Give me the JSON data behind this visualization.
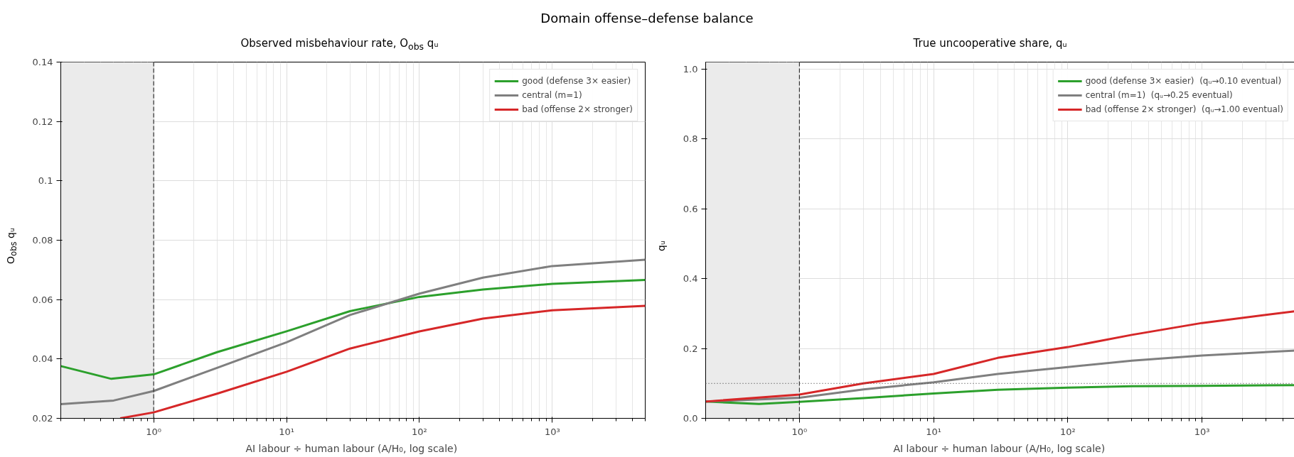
{
  "chart_data": [
    {
      "type": "line",
      "annotations": [
        "Domain offense–defense balance"
      ],
      "title": "Observed misbehaviour rate, O$_{obs}$ qᵤ",
      "xlabel": "AI labour ÷ human labour  (A/H₀, log scale)",
      "ylabel": "O$_{obs}$ qᵤ",
      "log": "x",
      "grid": true,
      "legend": "top right",
      "line_style": "solid",
      "marker": "none",
      "xlim": [
        0.2,
        5000
      ],
      "ylim": [
        0.02,
        0.14
      ],
      "xticks": [
        {
          "value": 1,
          "label": "10⁰"
        },
        {
          "value": 10,
          "label": "10¹"
        },
        {
          "value": 100,
          "label": "10²"
        },
        {
          "value": 1000,
          "label": "10³"
        }
      ],
      "yticks": [
        0.02,
        0.04,
        0.06,
        0.08,
        0.1,
        0.12,
        0.14
      ],
      "bands": [
        {
          "axis": "x",
          "from": 0.2,
          "to": 1,
          "color": "#ebebeb"
        }
      ],
      "ref_lines": [
        {
          "axis": "x",
          "value": 1,
          "color": "#333333",
          "line_style": "dashed"
        }
      ],
      "series": [
        {
          "name": "good (defense 3× easier)",
          "color": "#2ca02c",
          "x": [
            0.2,
            0.48,
            1,
            3,
            10,
            30,
            100,
            300,
            1000,
            5000
          ],
          "values": [
            0.0376,
            0.0333,
            0.0348,
            0.0423,
            0.0493,
            0.0561,
            0.0609,
            0.0634,
            0.0653,
            0.0666
          ]
        },
        {
          "name": "central (m=1)",
          "color": "#7f7f7f",
          "x": [
            0.2,
            0.5,
            1,
            3,
            10,
            30,
            100,
            300,
            1000,
            5000
          ],
          "values": [
            0.0248,
            0.026,
            0.0292,
            0.037,
            0.0456,
            0.0548,
            0.062,
            0.0674,
            0.0713,
            0.0734
          ]
        },
        {
          "name": "bad (offense 2× stronger)",
          "color": "#d62728",
          "x": [
            0.56,
            1,
            3,
            10,
            30,
            100,
            300,
            1000,
            5000
          ],
          "values": [
            0.02,
            0.022,
            0.0283,
            0.0357,
            0.0435,
            0.0493,
            0.0536,
            0.0564,
            0.0579
          ]
        }
      ]
    },
    {
      "type": "line",
      "title": "True uncooperative share, qᵤ",
      "xlabel": "AI labour ÷ human labour  (A/H₀, log scale)",
      "ylabel": "qᵤ",
      "log": "x",
      "grid": true,
      "legend": "top right",
      "line_style": "solid",
      "marker": "none",
      "xlim": [
        0.2,
        5000
      ],
      "ylim": [
        0,
        1.02
      ],
      "xticks": [
        {
          "value": 1,
          "label": "10⁰"
        },
        {
          "value": 10,
          "label": "10¹"
        },
        {
          "value": 100,
          "label": "10²"
        },
        {
          "value": 1000,
          "label": "10³"
        }
      ],
      "yticks": [
        {
          "value": 0,
          "label": "0.0"
        },
        {
          "value": 0.2,
          "label": "0.2"
        },
        {
          "value": 0.4,
          "label": "0.4"
        },
        {
          "value": 0.6,
          "label": "0.6"
        },
        {
          "value": 0.8,
          "label": "0.8"
        },
        {
          "value": 1,
          "label": "1.0"
        }
      ],
      "bands": [
        {
          "axis": "x",
          "from": 0.2,
          "to": 1,
          "color": "#ebebeb"
        }
      ],
      "ref_lines": [
        {
          "axis": "x",
          "value": 1,
          "color": "#333333",
          "line_style": "dashed"
        },
        {
          "axis": "y",
          "value": 0.1,
          "color": "#555555",
          "line_style": "dotted"
        }
      ],
      "series": [
        {
          "name": "good (defense 3× easier)  (qᵤ→0.10 eventual)",
          "color": "#2ca02c",
          "x": [
            0.2,
            0.5,
            1,
            3,
            10,
            30,
            100,
            300,
            1000,
            5000
          ],
          "values": [
            0.048,
            0.041,
            0.047,
            0.058,
            0.071,
            0.082,
            0.088,
            0.092,
            0.093,
            0.095
          ]
        },
        {
          "name": "central (m=1)  (qᵤ→0.25 eventual)",
          "color": "#7f7f7f",
          "x": [
            0.2,
            1,
            3,
            10,
            30,
            100,
            300,
            1000,
            5000
          ],
          "values": [
            0.048,
            0.059,
            0.083,
            0.103,
            0.127,
            0.147,
            0.165,
            0.18,
            0.194
          ]
        },
        {
          "name": "bad (offense 2× stronger)  (qᵤ→1.00 eventual)",
          "color": "#d62728",
          "x": [
            0.2,
            1,
            3,
            10,
            30,
            100,
            300,
            1000,
            5000
          ],
          "values": [
            0.048,
            0.068,
            0.1,
            0.127,
            0.173,
            0.204,
            0.239,
            0.273,
            0.307
          ]
        }
      ]
    }
  ]
}
